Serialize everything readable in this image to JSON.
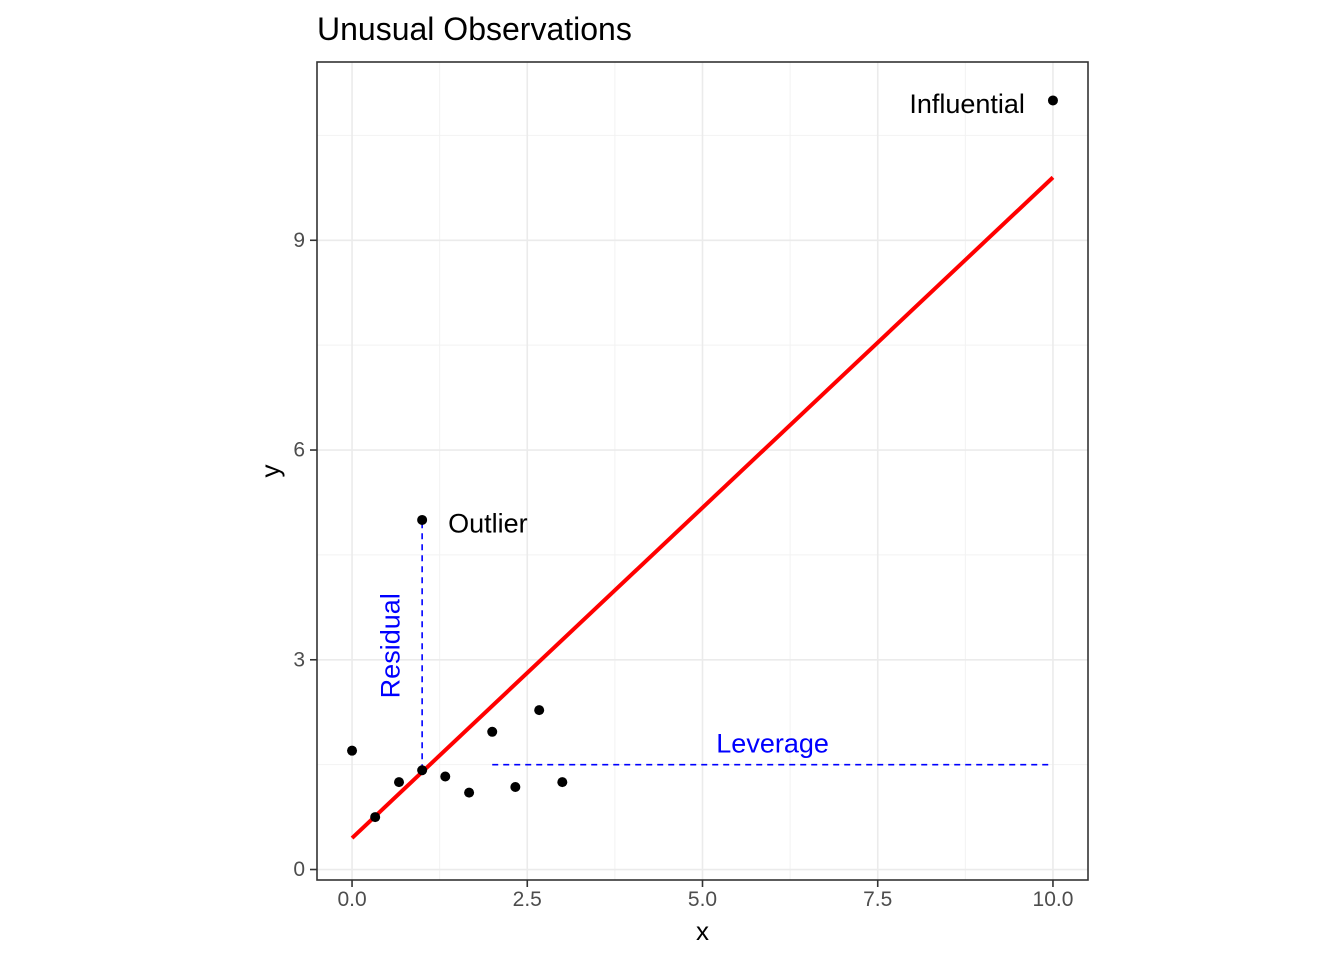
{
  "chart_data": {
    "type": "scatter",
    "title": "Unusual Observations",
    "xlabel": "x",
    "ylabel": "y",
    "xlim": [
      -0.5,
      10.5
    ],
    "ylim": [
      -0.15,
      11.55
    ],
    "x_ticks": [
      0.0,
      2.5,
      5.0,
      7.5,
      10.0
    ],
    "x_tick_labels": [
      "0.0",
      "2.5",
      "5.0",
      "7.5",
      "10.0"
    ],
    "y_ticks": [
      0,
      3,
      6,
      9
    ],
    "y_tick_labels": [
      "0",
      "3",
      "6",
      "9"
    ],
    "grid": true,
    "points": [
      {
        "x": 0.0,
        "y": 1.7
      },
      {
        "x": 0.33,
        "y": 0.75
      },
      {
        "x": 0.67,
        "y": 1.25
      },
      {
        "x": 1.0,
        "y": 1.42
      },
      {
        "x": 1.33,
        "y": 1.33
      },
      {
        "x": 1.67,
        "y": 1.1
      },
      {
        "x": 2.0,
        "y": 1.97
      },
      {
        "x": 2.33,
        "y": 1.18
      },
      {
        "x": 2.67,
        "y": 2.28
      },
      {
        "x": 3.0,
        "y": 1.25
      },
      {
        "x": 1.0,
        "y": 5.0
      },
      {
        "x": 10.0,
        "y": 11.0
      }
    ],
    "fit_line": {
      "x": [
        0.0,
        10.0
      ],
      "y": [
        0.45,
        9.9
      ],
      "color": "#ff0000"
    },
    "residual_segment": {
      "x": [
        1.0,
        1.0
      ],
      "y": [
        1.42,
        5.0
      ],
      "color": "#0000ff",
      "style": "dashed"
    },
    "leverage_segment": {
      "x": [
        2.0,
        10.0
      ],
      "y": [
        1.5,
        1.5
      ],
      "color": "#0000ff",
      "style": "dashed"
    },
    "annotations": [
      {
        "text": "Outlier",
        "x": 1.37,
        "y": 4.95,
        "color": "#000000",
        "anchor": "start",
        "rotate": 0
      },
      {
        "text": "Influential",
        "x": 9.6,
        "y": 10.95,
        "color": "#000000",
        "anchor": "end",
        "rotate": 0
      },
      {
        "text": "Residual",
        "x": 0.55,
        "y": 3.2,
        "color": "#0000ff",
        "anchor": "middle",
        "rotate": -90
      },
      {
        "text": "Leverage",
        "x": 6.0,
        "y": 1.8,
        "color": "#0000ff",
        "anchor": "middle",
        "rotate": 0
      }
    ],
    "point_color": "#000000"
  }
}
